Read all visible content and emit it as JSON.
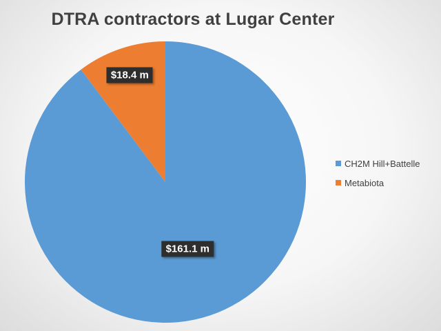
{
  "chart_data": {
    "type": "pie",
    "title": "DTRA contractors at Lugar Center",
    "slices": [
      {
        "label": "CH2M Hill+Battelle",
        "value": 161.1,
        "display": "$161.1 m",
        "color": "#5b9bd5"
      },
      {
        "label": "Metabiota",
        "value": 18.4,
        "display": "$18.4 m",
        "color": "#ed7d31"
      }
    ],
    "legend_position": "right"
  }
}
